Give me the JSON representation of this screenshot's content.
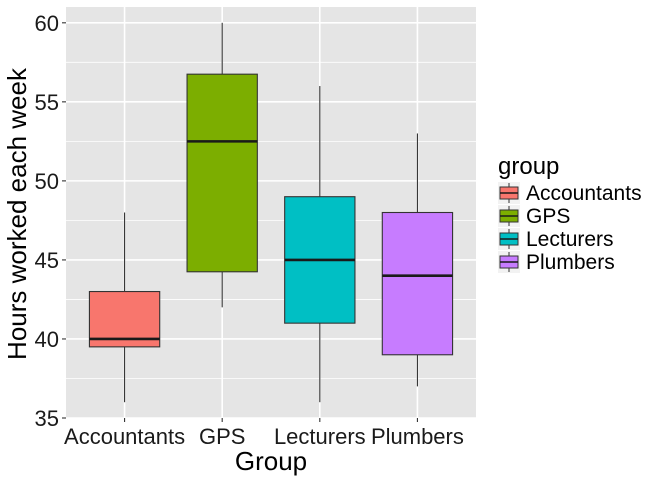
{
  "chart_data": {
    "type": "boxplot",
    "title": "",
    "xlabel": "Group",
    "ylabel": "Hours worked each week",
    "ylim": [
      35,
      61
    ],
    "yticks": [
      35,
      40,
      45,
      50,
      55,
      60
    ],
    "categories": [
      "Accountants",
      "GPS",
      "Lecturers",
      "Plumbers"
    ],
    "boxes": [
      {
        "name": "Accountants",
        "min": 36,
        "q1": 39.5,
        "median": 40,
        "q3": 43,
        "max": 48,
        "color": "#F8766D"
      },
      {
        "name": "GPS",
        "min": 42,
        "q1": 44.25,
        "median": 52.5,
        "q3": 56.75,
        "max": 60,
        "color": "#7CAE00"
      },
      {
        "name": "Lecturers",
        "min": 36,
        "q1": 41,
        "median": 45,
        "q3": 49,
        "max": 56,
        "color": "#00BFC4"
      },
      {
        "name": "Plumbers",
        "min": 37,
        "q1": 39,
        "median": 44,
        "q3": 48,
        "max": 53,
        "color": "#C77CFF"
      }
    ],
    "legend": {
      "title": "group",
      "position": "right",
      "entries": [
        "Accountants",
        "GPS",
        "Lecturers",
        "Plumbers"
      ]
    },
    "grid": true,
    "panel_background": "#E5E5E5",
    "grid_color": "#FFFFFF"
  }
}
